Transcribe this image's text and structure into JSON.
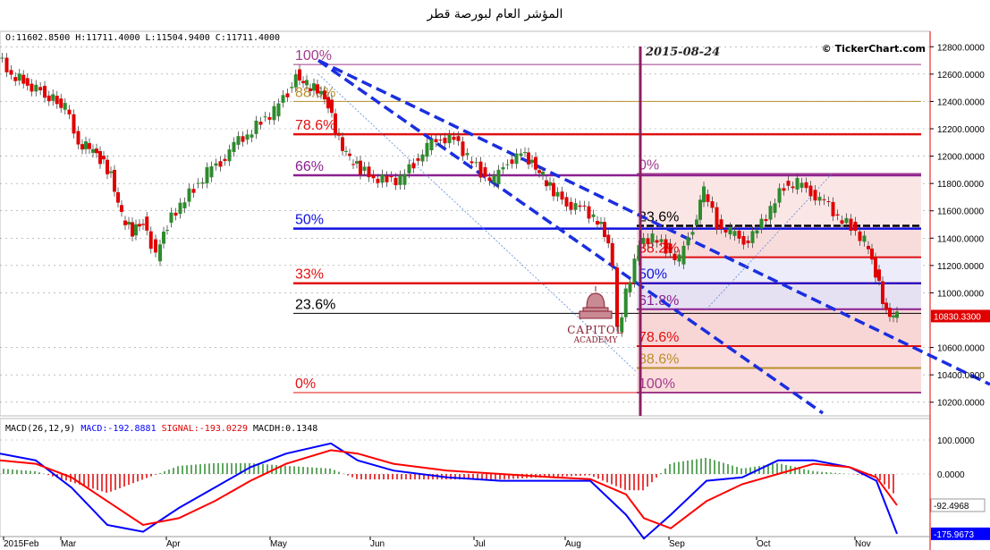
{
  "title": "المؤشر العام لبورصة قطر",
  "ohlc_text": "O:11602.8500 H:11711.4000 L:11504.9400 C:11711.4000",
  "copyright": "© TickerChart.com",
  "date_marker": "2015-08-24",
  "logo": {
    "line1": "CAPITOL",
    "line2": "ACADEMY"
  },
  "macd": {
    "label": "MACD(26,12,9)",
    "macd_text": "MACD:-192.8881",
    "signal_text": "SIGNAL:-193.0229",
    "hist_text": "MACDH:0.1348",
    "ticks": [
      "100.0000",
      "0.0000"
    ],
    "signal_value_label": "-92.4968",
    "macd_value_label": "-175.9673"
  },
  "colors": {
    "up": "#2e8b2e",
    "down": "#e00000",
    "macd": "#0000ff",
    "signal": "#ff0000",
    "fib_purple": "#a03c8c",
    "fib_red": "#e01010",
    "fib_blue": "#1010e0",
    "fib_gold": "#b8902a"
  },
  "chart_data": {
    "type": "candlestick",
    "instrument": "المؤشر العام لبورصة قطر",
    "x_labels": [
      "2015Feb",
      "Mar",
      "Apr",
      "May",
      "Jun",
      "Jul",
      "Aug",
      "Sep",
      "Oct",
      "Nov"
    ],
    "y_ticks": [
      12800,
      12600,
      12400,
      12200,
      12000,
      11800,
      11600,
      11400,
      11200,
      11000,
      10600,
      10400,
      10200
    ],
    "ylim": [
      10100,
      12900
    ],
    "last_price": "10830.3300",
    "close_path": [
      {
        "x": 0,
        "y": 12720
      },
      {
        "x": 10,
        "y": 12600
      },
      {
        "x": 22,
        "y": 12530
      },
      {
        "x": 35,
        "y": 12460
      },
      {
        "x": 50,
        "y": 12350
      },
      {
        "x": 60,
        "y": 12100
      },
      {
        "x": 68,
        "y": 12060
      },
      {
        "x": 76,
        "y": 11980
      },
      {
        "x": 84,
        "y": 11870
      },
      {
        "x": 92,
        "y": 11560
      },
      {
        "x": 100,
        "y": 11440
      },
      {
        "x": 108,
        "y": 11520
      },
      {
        "x": 114,
        "y": 11360
      },
      {
        "x": 118,
        "y": 11270
      },
      {
        "x": 126,
        "y": 11500
      },
      {
        "x": 136,
        "y": 11650
      },
      {
        "x": 146,
        "y": 11760
      },
      {
        "x": 156,
        "y": 11880
      },
      {
        "x": 166,
        "y": 11960
      },
      {
        "x": 176,
        "y": 12080
      },
      {
        "x": 186,
        "y": 12160
      },
      {
        "x": 196,
        "y": 12250
      },
      {
        "x": 206,
        "y": 12330
      },
      {
        "x": 216,
        "y": 12470
      },
      {
        "x": 222,
        "y": 12600
      },
      {
        "x": 230,
        "y": 12520
      },
      {
        "x": 238,
        "y": 12480
      },
      {
        "x": 246,
        "y": 12380
      },
      {
        "x": 254,
        "y": 12120
      },
      {
        "x": 262,
        "y": 11980
      },
      {
        "x": 270,
        "y": 11900
      },
      {
        "x": 280,
        "y": 11850
      },
      {
        "x": 290,
        "y": 11820
      },
      {
        "x": 300,
        "y": 11830
      },
      {
        "x": 310,
        "y": 11950
      },
      {
        "x": 320,
        "y": 12060
      },
      {
        "x": 330,
        "y": 12140
      },
      {
        "x": 340,
        "y": 12120
      },
      {
        "x": 350,
        "y": 12000
      },
      {
        "x": 360,
        "y": 11880
      },
      {
        "x": 370,
        "y": 11820
      },
      {
        "x": 380,
        "y": 11970
      },
      {
        "x": 390,
        "y": 12010
      },
      {
        "x": 398,
        "y": 11960
      },
      {
        "x": 406,
        "y": 11850
      },
      {
        "x": 414,
        "y": 11730
      },
      {
        "x": 424,
        "y": 11660
      },
      {
        "x": 434,
        "y": 11620
      },
      {
        "x": 444,
        "y": 11560
      },
      {
        "x": 452,
        "y": 11440
      },
      {
        "x": 458,
        "y": 11210
      },
      {
        "x": 462,
        "y": 10720
      },
      {
        "x": 468,
        "y": 11000
      },
      {
        "x": 478,
        "y": 11340
      },
      {
        "x": 488,
        "y": 11420
      },
      {
        "x": 498,
        "y": 11320
      },
      {
        "x": 508,
        "y": 11240
      },
      {
        "x": 518,
        "y": 11480
      },
      {
        "x": 526,
        "y": 11760
      },
      {
        "x": 536,
        "y": 11500
      },
      {
        "x": 546,
        "y": 11440
      },
      {
        "x": 556,
        "y": 11380
      },
      {
        "x": 566,
        "y": 11450
      },
      {
        "x": 576,
        "y": 11620
      },
      {
        "x": 586,
        "y": 11780
      },
      {
        "x": 596,
        "y": 11800
      },
      {
        "x": 606,
        "y": 11740
      },
      {
        "x": 616,
        "y": 11660
      },
      {
        "x": 626,
        "y": 11560
      },
      {
        "x": 636,
        "y": 11480
      },
      {
        "x": 646,
        "y": 11380
      },
      {
        "x": 654,
        "y": 11150
      },
      {
        "x": 662,
        "y": 10860
      },
      {
        "x": 670,
        "y": 10830
      }
    ],
    "fib_left": [
      {
        "label": "100%",
        "level": 12670,
        "color": "#a03c8c"
      },
      {
        "label": "88.6%",
        "level": 12400,
        "color": "#b8902a"
      },
      {
        "label": "78.6%",
        "level": 12160,
        "color": "#e01010"
      },
      {
        "label": "66%",
        "level": 11860,
        "color": "#8b2090"
      },
      {
        "label": "50%",
        "level": 11470,
        "color": "#1010e0"
      },
      {
        "label": "33%",
        "level": 11070,
        "color": "#e01010"
      },
      {
        "label": "23.6%",
        "level": 10850,
        "color": "#000000"
      },
      {
        "label": "0%",
        "level": 10270,
        "color": "#e01010"
      }
    ],
    "fib_right": [
      {
        "label": "0%",
        "level": 11870,
        "color": "#a03c8c"
      },
      {
        "label": "23.6%",
        "level": 11490,
        "color": "#000000"
      },
      {
        "label": "38.2%",
        "level": 11260,
        "color": "#e01010"
      },
      {
        "label": "50%",
        "level": 11070,
        "color": "#1010e0"
      },
      {
        "label": "61.8%",
        "level": 10880,
        "color": "#8b2090"
      },
      {
        "label": "78.6%",
        "level": 10610,
        "color": "#e01010"
      },
      {
        "label": "88.6%",
        "level": 10450,
        "color": "#b8902a"
      },
      {
        "label": "100%",
        "level": 10270,
        "color": "#a03c8c"
      }
    ]
  }
}
